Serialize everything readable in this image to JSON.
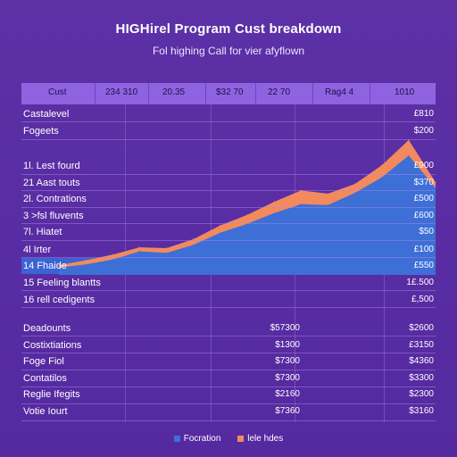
{
  "chart_data": {
    "type": "area",
    "title": "HIGHirel Program Cust breakdown",
    "subtitle": "Fol highing Call for vier afyflown",
    "header": [
      "Cust",
      "234 310",
      "20.35",
      "$32 70",
      "22 70",
      "Rag4 4",
      "1010"
    ],
    "x": [
      0,
      1,
      2,
      3,
      4,
      5,
      6,
      7,
      8,
      9,
      10,
      11,
      12,
      13,
      14
    ],
    "series": [
      {
        "name": "lele hdes",
        "color": "#f28a5e",
        "values": [
          1.2,
          1.8,
          2.5,
          3.4,
          3.3,
          4.4,
          6.1,
          7.4,
          9.0,
          10.4,
          10.0,
          11.2,
          13.5,
          16.6,
          11.4
        ]
      },
      {
        "name": "Focration",
        "color": "#3d6fd6",
        "values": [
          0.9,
          1.3,
          1.9,
          2.9,
          2.7,
          3.7,
          5.2,
          6.3,
          7.6,
          8.7,
          8.6,
          10.1,
          12.0,
          14.7,
          10.7
        ]
      }
    ],
    "ylim": [
      0,
      20
    ],
    "table_rows": [
      {
        "label": "Castalevel",
        "value": "£810"
      },
      {
        "label": "Fogeets",
        "value": "$200"
      },
      {
        "label": "1l. Lest fourd",
        "value": "£900"
      },
      {
        "label": "21 Aast touts",
        "value": "$370"
      },
      {
        "label": "2l. Contrations",
        "value": "£500"
      },
      {
        "label": "3 >fsl fluvents",
        "value": "£600"
      },
      {
        "label": "7l. Hiatet",
        "value": "$50"
      },
      {
        "label": "4l Irter",
        "value": "£100"
      },
      {
        "label": "14 Fhaide",
        "value": "£550"
      },
      {
        "label": "15 Feeling blantts",
        "value": "1£.500"
      },
      {
        "label": "16 rell cedigents",
        "value": "£,500"
      }
    ],
    "summary_rows": [
      {
        "label": "Deadounts",
        "mid": "$57300",
        "value": "$2600"
      },
      {
        "label": "Costixtiations",
        "mid": "$1300",
        "value": "£3150"
      },
      {
        "label": "Foge Fiol",
        "mid": "$7300",
        "value": "$4360"
      },
      {
        "label": "Contatilos",
        "mid": "$7300",
        "value": "$3300"
      },
      {
        "label": "Reglie Ifegits",
        "mid": "$2160",
        "value": "$2300"
      },
      {
        "label": "Votie Iourt",
        "mid": "$7360",
        "value": "$3160"
      }
    ],
    "legend_placement": "bottom-center",
    "grid": true
  },
  "colors": {
    "background": "#5a2fa3",
    "header": "#8f63e0",
    "orange_area": "#f28a5e",
    "blue_area": "#3d6fd6",
    "highlight": "#3b63d4"
  }
}
